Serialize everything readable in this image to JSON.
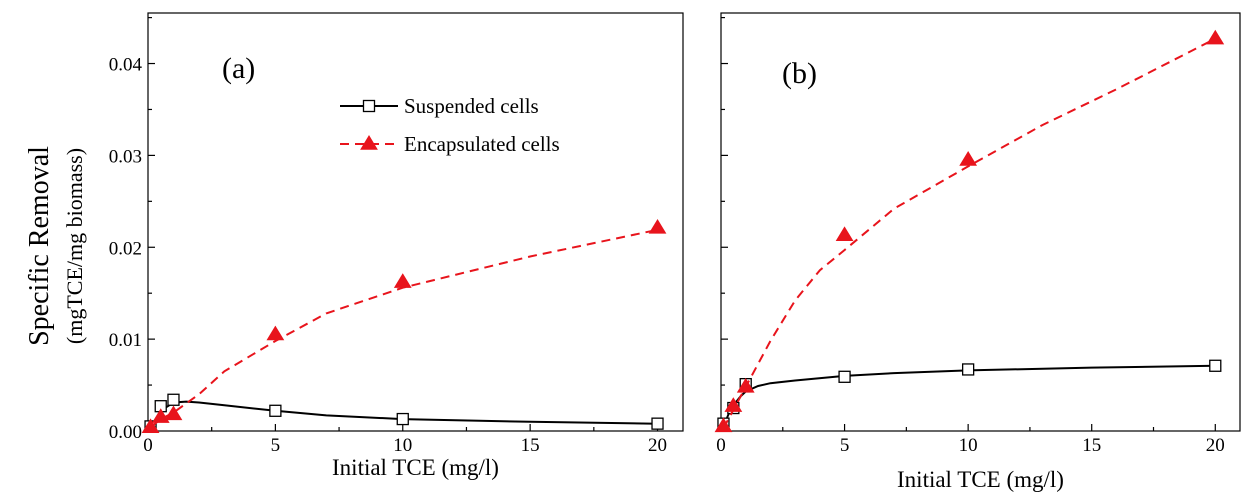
{
  "chart_data": [
    {
      "type": "line",
      "panel_label": "(a)",
      "xlabel": "Initial TCE (mg/l)",
      "ylabel": "Specific Removal",
      "ylabel_units": "(mgTCE/mg biomass)",
      "xlim": [
        0,
        21
      ],
      "ylim": [
        0,
        0.0455
      ],
      "xticks": [
        0,
        5,
        10,
        15,
        20
      ],
      "yticks": [
        0.0,
        0.01,
        0.02,
        0.03,
        0.04
      ],
      "ytick_labels": [
        "0.00",
        "0.01",
        "0.02",
        "0.03",
        "0.04"
      ],
      "legend": "top-center",
      "series": [
        {
          "name": "Suspended cells",
          "marker": "open-square",
          "line": "solid",
          "color": "#000000",
          "x": [
            0.1,
            0.5,
            1,
            5,
            10,
            20
          ],
          "y": [
            0.0005,
            0.0027,
            0.0034,
            0.0022,
            0.0013,
            0.0008
          ],
          "fit_x": [
            0.1,
            0.5,
            1,
            1.5,
            2,
            3,
            5,
            7,
            10,
            15,
            20
          ],
          "fit_y": [
            0.0003,
            0.0022,
            0.0031,
            0.0032,
            0.0031,
            0.0028,
            0.0022,
            0.0017,
            0.0013,
            0.001,
            0.0008
          ]
        },
        {
          "name": "Encapsulated cells",
          "marker": "filled-triangle",
          "line": "dashed",
          "color": "#e8141c",
          "x": [
            0.1,
            0.5,
            1,
            5,
            10,
            20
          ],
          "y": [
            0.0004,
            0.0015,
            0.0018,
            0.0105,
            0.0162,
            0.0221
          ],
          "fit_x": [
            0.1,
            0.5,
            1,
            2,
            3,
            5,
            7,
            10,
            15,
            20
          ],
          "fit_y": [
            0.0004,
            0.0013,
            0.002,
            0.004,
            0.0065,
            0.0098,
            0.0128,
            0.0156,
            0.019,
            0.0219
          ]
        }
      ]
    },
    {
      "type": "line",
      "panel_label": "(b)",
      "xlabel": "Initial TCE (mg/l)",
      "xlim": [
        0,
        21
      ],
      "ylim": [
        0,
        0.0455
      ],
      "xticks": [
        0,
        5,
        10,
        15,
        20
      ],
      "yticks": [
        0.0,
        0.01,
        0.02,
        0.03,
        0.04
      ],
      "series": [
        {
          "name": "Suspended cells",
          "marker": "open-square",
          "line": "solid",
          "color": "#000000",
          "x": [
            0.1,
            0.5,
            1,
            5,
            10,
            20
          ],
          "y": [
            0.0008,
            0.0025,
            0.0051,
            0.0059,
            0.0067,
            0.0071
          ],
          "fit_x": [
            0.1,
            0.3,
            0.5,
            0.8,
            1,
            1.5,
            2,
            3,
            5,
            7,
            10,
            15,
            20
          ],
          "fit_y": [
            0.0005,
            0.0018,
            0.0028,
            0.0038,
            0.0043,
            0.0049,
            0.0052,
            0.0055,
            0.006,
            0.0063,
            0.0066,
            0.0069,
            0.0071
          ]
        },
        {
          "name": "Encapsulated cells",
          "marker": "filled-triangle",
          "line": "dashed",
          "color": "#e8141c",
          "x": [
            0.1,
            0.5,
            1,
            5,
            10,
            20
          ],
          "y": [
            0.0005,
            0.0027,
            0.0048,
            0.0213,
            0.0295,
            0.0427
          ],
          "fit_x": [
            0.1,
            0.5,
            1,
            2,
            3,
            4,
            5,
            7,
            10,
            13,
            16,
            20
          ],
          "fit_y": [
            0.0003,
            0.0023,
            0.0048,
            0.0098,
            0.0142,
            0.0175,
            0.0197,
            0.0242,
            0.0288,
            0.0333,
            0.0372,
            0.0427
          ]
        }
      ]
    }
  ]
}
